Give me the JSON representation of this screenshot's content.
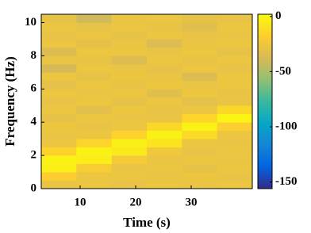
{
  "chart_data": {
    "type": "heatmap",
    "xlabel": "Time (s)",
    "ylabel": "Frequency (Hz)",
    "x": [
      6.17,
      12.5,
      18.83,
      25.17,
      31.5,
      37.83
    ],
    "y": [
      0.25,
      0.75,
      1.25,
      1.75,
      2.25,
      2.75,
      3.25,
      3.75,
      4.25,
      4.75,
      5.25,
      5.75,
      6.25,
      6.75,
      7.25,
      7.75,
      8.25,
      8.75,
      9.25,
      9.75,
      10.25
    ],
    "z": [
      [
        -28,
        -27,
        -29,
        -26,
        -28,
        -27
      ],
      [
        -18,
        -26,
        -27,
        -28,
        -26,
        -29
      ],
      [
        -3,
        -20,
        -28,
        -27,
        -30,
        -26
      ],
      [
        -2,
        -4,
        -22,
        -28,
        -27,
        -28
      ],
      [
        -16,
        -2,
        -6,
        -24,
        -29,
        -27
      ],
      [
        -27,
        -15,
        -3,
        -8,
        -26,
        -28
      ],
      [
        -28,
        -27,
        -16,
        -2,
        -12,
        -27
      ],
      [
        -26,
        -29,
        -27,
        -14,
        -2,
        -18
      ],
      [
        -30,
        -27,
        -28,
        -28,
        -15,
        -1
      ],
      [
        -27,
        -32,
        -26,
        -29,
        -27,
        -14
      ],
      [
        -29,
        -26,
        -30,
        -27,
        -31,
        -28
      ],
      [
        -26,
        -28,
        -27,
        -33,
        -26,
        -29
      ],
      [
        -31,
        -27,
        -29,
        -26,
        -28,
        -27
      ],
      [
        -27,
        -30,
        -26,
        -28,
        -35,
        -26
      ],
      [
        -38,
        -27,
        -28,
        -30,
        -27,
        -29
      ],
      [
        -28,
        -29,
        -36,
        -27,
        -29,
        -27
      ],
      [
        -35,
        -26,
        -27,
        -29,
        -26,
        -30
      ],
      [
        -27,
        -31,
        -28,
        -36,
        -28,
        -27
      ],
      [
        -29,
        -27,
        -30,
        -27,
        -29,
        -28
      ],
      [
        -27,
        -30,
        -27,
        -29,
        -33,
        -27
      ],
      [
        -30,
        -40,
        -28,
        -27,
        -30,
        -29
      ]
    ],
    "xlim": [
      3,
      41
    ],
    "xticks": [
      10,
      20,
      30
    ],
    "ylim": [
      0,
      10.5
    ],
    "yticks": [
      0,
      2,
      4,
      6,
      8,
      10
    ],
    "colormap": "parula",
    "clim": [
      -156,
      2
    ],
    "cticks": [
      0,
      -50,
      -100,
      -150
    ]
  }
}
